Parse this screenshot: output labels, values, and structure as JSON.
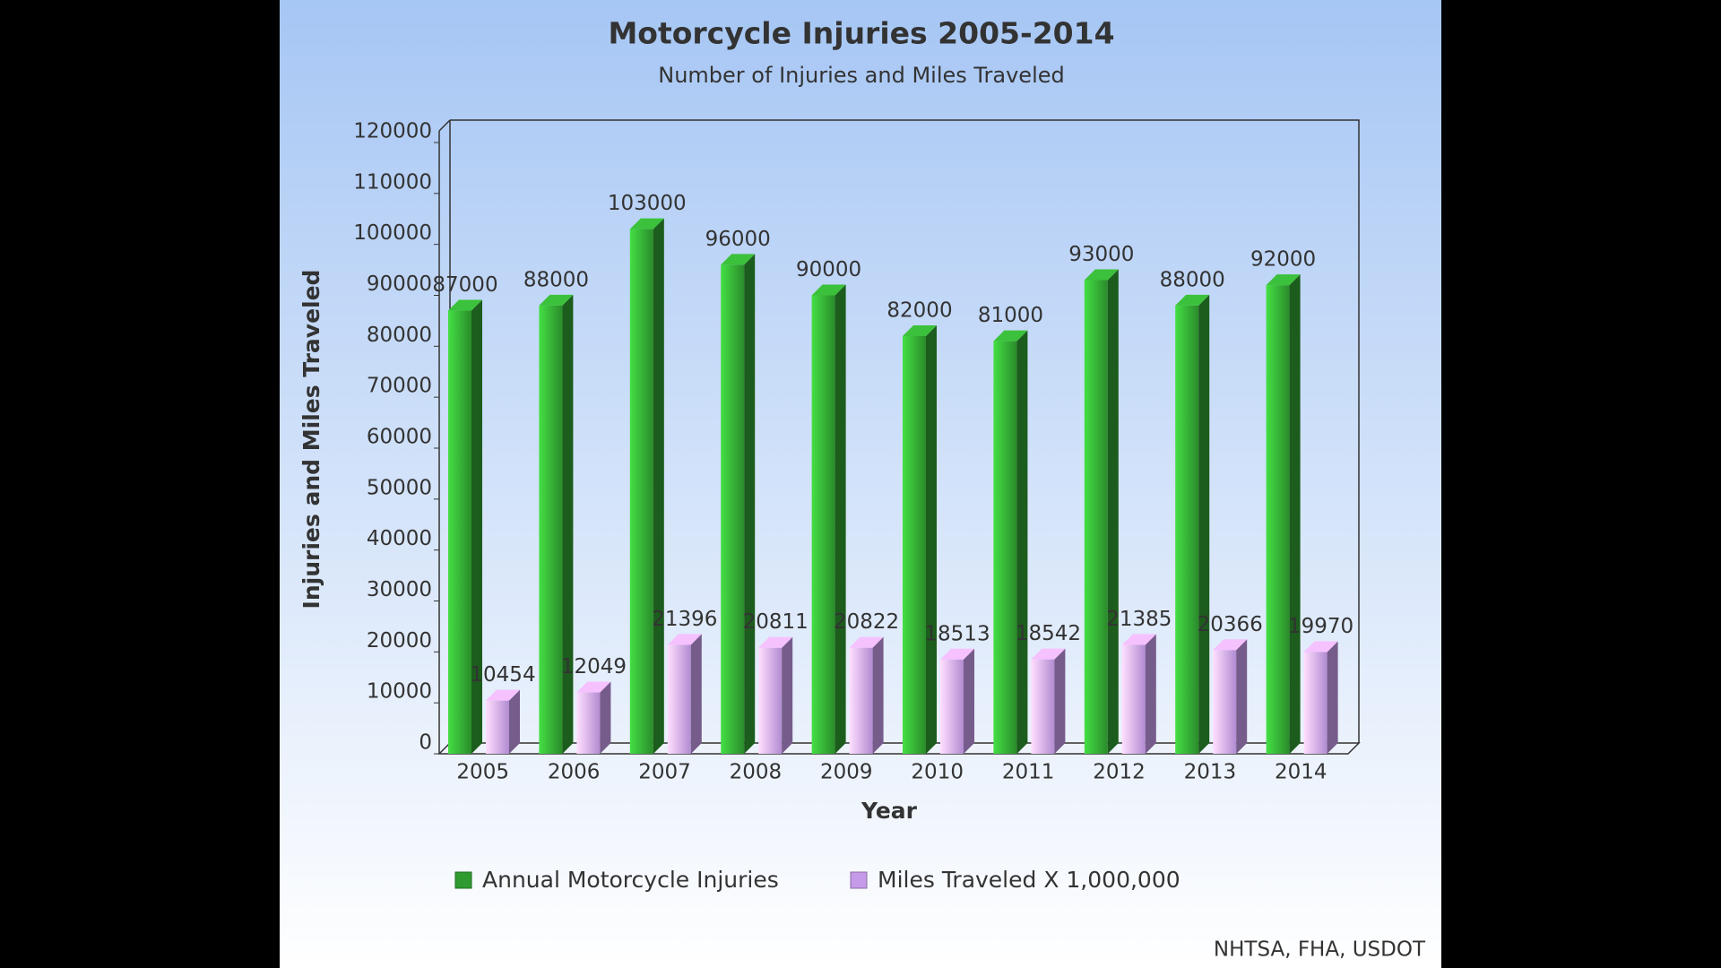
{
  "chart_data": {
    "type": "bar",
    "title": "Motorcycle Injuries 2005-2014",
    "subtitle": "Number of Injuries and Miles Traveled",
    "x_label": "Year",
    "y_label": "Injuries and Miles Traveled",
    "source": "NHTSA, FHA, USDOT",
    "categories": [
      "2005",
      "2006",
      "2007",
      "2008",
      "2009",
      "2010",
      "2011",
      "2012",
      "2013",
      "2014"
    ],
    "series": [
      {
        "name": "Annual Motorcycle Injuries",
        "color": "#2f9a2f",
        "values": [
          87000,
          88000,
          103000,
          96000,
          90000,
          82000,
          81000,
          93000,
          88000,
          92000
        ]
      },
      {
        "name": "Miles Traveled X 1,000,000",
        "color": "#c59ae8",
        "values": [
          10454,
          12049,
          21396,
          20811,
          20822,
          18513,
          18542,
          21385,
          20366,
          19970
        ]
      }
    ],
    "ylim": [
      0,
      120000
    ],
    "yticks": [
      0,
      10000,
      20000,
      30000,
      40000,
      50000,
      60000,
      70000,
      80000,
      90000,
      100000,
      110000,
      120000
    ],
    "legend": "bottom"
  }
}
